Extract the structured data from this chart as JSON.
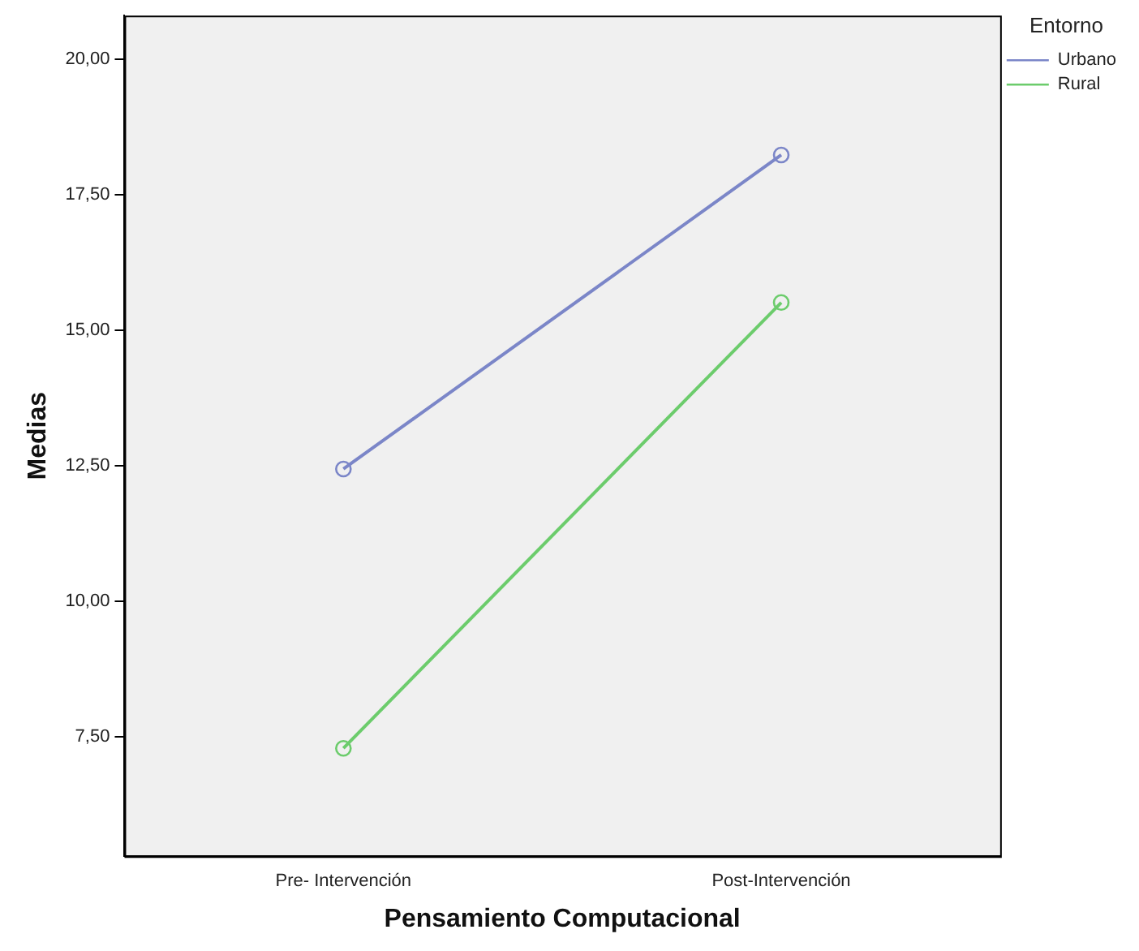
{
  "chart_data": {
    "type": "line",
    "xlabel": "Pensamiento Computacional",
    "ylabel": "Medias",
    "legend_title": "Entorno",
    "categories": [
      "Pre- Intervención",
      "Post-Intervención"
    ],
    "series": [
      {
        "name": "Urbano",
        "color": "#7b86c8",
        "values": [
          12.44,
          18.23
        ]
      },
      {
        "name": "Rural",
        "color": "#6ccc6c",
        "values": [
          7.29,
          15.51
        ]
      }
    ],
    "ylim": [
      5.3,
      20.8
    ],
    "yticks": [
      {
        "value": 7.5,
        "label": "7,50"
      },
      {
        "value": 10,
        "label": "10,00"
      },
      {
        "value": 12.5,
        "label": "12,50"
      },
      {
        "value": 15,
        "label": "15,00"
      },
      {
        "value": 17.5,
        "label": "17,50"
      },
      {
        "value": 20,
        "label": "20,00"
      }
    ],
    "grid": false,
    "legend": "top right",
    "marker": "circle",
    "line_style": "solid"
  }
}
